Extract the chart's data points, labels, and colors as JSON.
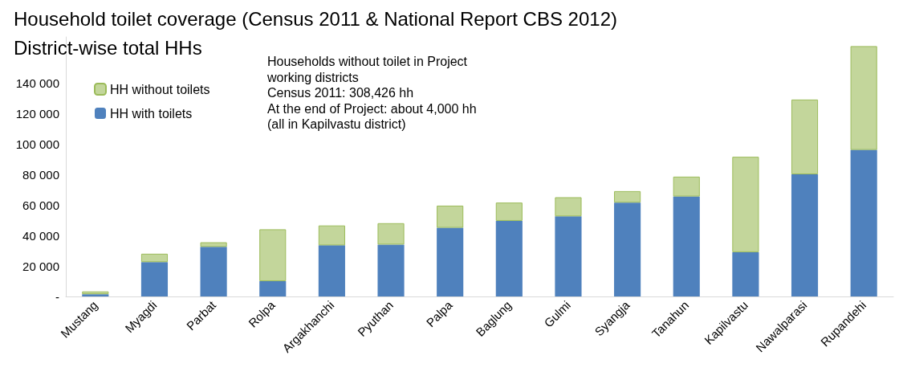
{
  "chart_data": {
    "type": "bar",
    "title": "Household toilet coverage (Census 2011 & National Report CBS 2012)",
    "subtitle": "District-wise total HHs",
    "categories": [
      "Mustang",
      "Myagdi",
      "Parbat",
      "Rolpa",
      "Argakhanchi",
      "Pyuthan",
      "Palpa",
      "Baglung",
      "Gulmi",
      "Syangja",
      "Tanahun",
      "Kapilvastu",
      "Nawalparasi",
      "Rupandehi"
    ],
    "stacked": true,
    "series": [
      {
        "name": "HH with toilets",
        "color": "#4f81bd",
        "values": [
          1500,
          22500,
          32500,
          10000,
          33500,
          34000,
          45000,
          49500,
          52500,
          61500,
          65500,
          29000,
          80000,
          96000
        ]
      },
      {
        "name": "HH without toilets",
        "color": "#c3d69b",
        "values": [
          1800,
          5500,
          3000,
          34000,
          13000,
          14000,
          14500,
          12000,
          12500,
          7500,
          13000,
          62500,
          49000,
          68000
        ]
      }
    ],
    "ylim": [
      0,
      170000
    ],
    "yticks": [
      {
        "value": 0,
        "label": "-"
      },
      {
        "value": 20000,
        "label": "20 000"
      },
      {
        "value": 40000,
        "label": "40 000"
      },
      {
        "value": 60000,
        "label": "60 000"
      },
      {
        "value": 80000,
        "label": "80 000"
      },
      {
        "value": 100000,
        "label": "100 000"
      },
      {
        "value": 120000,
        "label": "120 000"
      },
      {
        "value": 140000,
        "label": "140 000"
      }
    ],
    "grid": false,
    "legend": "top left",
    "annotations": [
      "Households without toilet in Project\nworking districts\nCensus 2011: 308,426 hh\nAt the end of Project: about 4,000 hh\n(all in Kapilvastu district)"
    ]
  }
}
